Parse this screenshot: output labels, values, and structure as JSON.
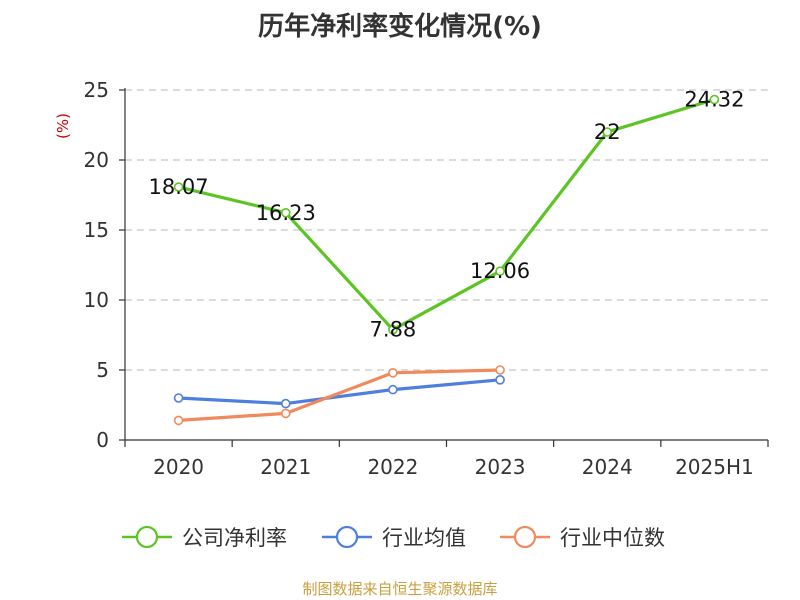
{
  "chart_data": {
    "type": "line",
    "title": "历年净利率变化情况(%)",
    "ylabel": "(%)",
    "ylim": [
      0,
      25
    ],
    "yticks": [
      0,
      5,
      10,
      15,
      20,
      25
    ],
    "categories": [
      "2020",
      "2021",
      "2022",
      "2023",
      "2024",
      "2025H1"
    ],
    "grid": true,
    "legend_position": "bottom",
    "series": [
      {
        "name": "公司净利率",
        "color": "#5cc524",
        "values": [
          18.07,
          16.23,
          7.88,
          12.06,
          22,
          24.32
        ],
        "labels": [
          "18.07",
          "16.23",
          "7.88",
          "12.06",
          "22",
          "24.32"
        ],
        "show_labels": true
      },
      {
        "name": "行业均值",
        "color": "#4f7fdc",
        "values": [
          3.0,
          2.6,
          3.6,
          4.3,
          null,
          null
        ],
        "show_labels": false
      },
      {
        "name": "行业中位数",
        "color": "#f08a5d",
        "values": [
          1.4,
          1.9,
          4.8,
          5.0,
          null,
          null
        ],
        "show_labels": false
      }
    ]
  },
  "footer": {
    "source": "制图数据来自恒生聚源数据库"
  }
}
